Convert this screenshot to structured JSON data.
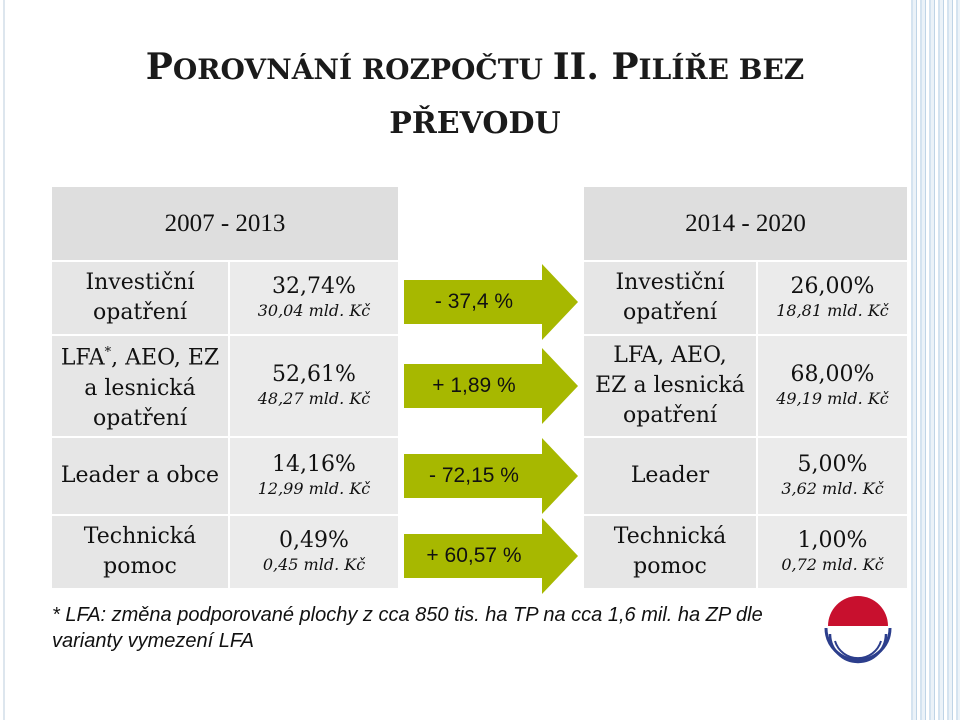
{
  "title": {
    "line1_cap1": "P",
    "line1_rest1": "OROVNÁNÍ ROZPOČTU ",
    "line1_cap2": "II. P",
    "line1_rest2": "ILÍŘE BEZ",
    "line2": "PŘEVODU"
  },
  "periods": {
    "old": "2007 - 2013",
    "new": "2014 - 2020"
  },
  "rows": [
    {
      "old_label": "Investiční opatření",
      "old_pct": "32,74%",
      "old_amount": "30,04 mld. Kč",
      "change": "- 37,4 %",
      "new_label": "Investiční opatření",
      "new_pct": "26,00%",
      "new_amount": "18,81 mld. Kč"
    },
    {
      "old_label_main": "LFA",
      "old_label_sup": "*",
      "old_label_rest": ", AEO, EZ a lesnická opatření",
      "old_pct": "52,61%",
      "old_amount": "48,27 mld. Kč",
      "change": "+ 1,89 %",
      "new_label": "LFA, AEO, EZ a lesnická opatření",
      "new_pct": "68,00%",
      "new_amount": "49,19 mld. Kč"
    },
    {
      "old_label": "Leader a obce",
      "old_pct": "14,16%",
      "old_amount": "12,99 mld. Kč",
      "change": "- 72,15 %",
      "new_label": "Leader",
      "new_pct": "5,00%",
      "new_amount": "3,62 mld. Kč"
    },
    {
      "old_label": "Technická pomoc",
      "old_pct": "0,49%",
      "old_amount": "0,45 mld. Kč",
      "change": "+ 60,57 %",
      "new_label": "Technická pomoc",
      "new_pct": "1,00%",
      "new_amount": "0,72 mld. Kč"
    }
  ],
  "footnote": "* LFA: změna podporované plochy z cca 850 tis. ha TP na cca 1,6 mil. ha ZP dle varianty vymezení LFA",
  "colors": {
    "arrow": "#a7b800",
    "header_bg": "#dedede",
    "cell_bg": "#e6e6e6",
    "logo_red": "#c8102e",
    "logo_blue": "#2c3e8c"
  },
  "icons": {
    "logo": "logo-icon"
  }
}
